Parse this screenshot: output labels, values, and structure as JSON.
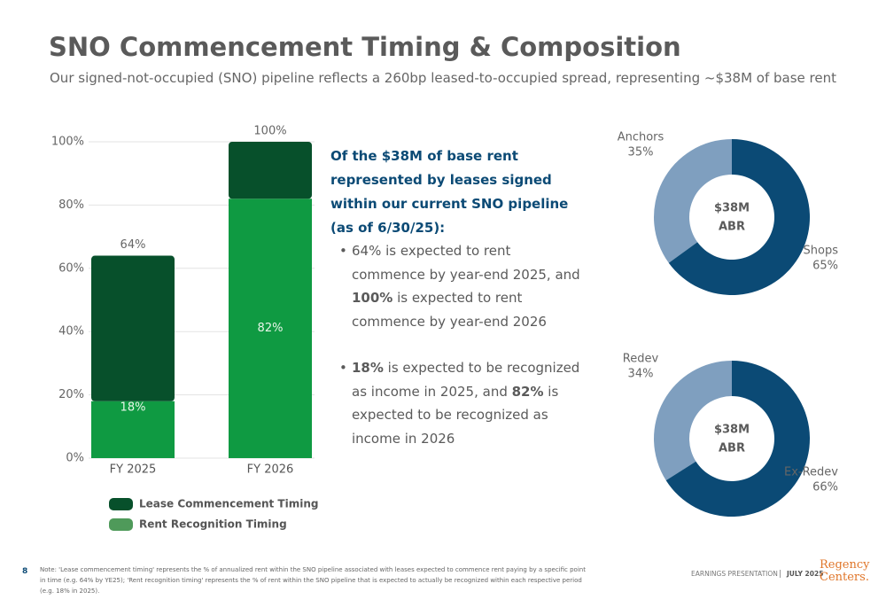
{
  "header": {
    "title": "SNO Commencement Timing & Composition",
    "subtitle": "Our signed-not-occupied (SNO) pipeline reflects a 260bp leased-to-occupied spread, representing ~$38M of base rent"
  },
  "chart_data": [
    {
      "type": "stacked_bar",
      "categories": [
        "FY 2025",
        "FY 2026"
      ],
      "series": [
        {
          "name": "Rent Recognition Timing",
          "color": "#0f9a42",
          "values": [
            18,
            82
          ],
          "value_labels": [
            "18%",
            "82%"
          ]
        },
        {
          "name": "Lease Commencement Timing",
          "color": "#07502b",
          "values": [
            46,
            18
          ]
        }
      ],
      "totals": [
        64,
        100
      ],
      "total_labels": [
        "64%",
        "100%"
      ],
      "legend_colors": [
        "#07502b",
        "#4f9a5a"
      ],
      "legend_order": [
        1,
        0
      ],
      "ylim": [
        0,
        100
      ],
      "yticks": [
        {
          "value": 0,
          "label": "0%"
        },
        {
          "value": 20,
          "label": "20%"
        },
        {
          "value": 40,
          "label": "40%"
        },
        {
          "value": 60,
          "label": "60%"
        },
        {
          "value": 80,
          "label": "80%"
        },
        {
          "value": 100,
          "label": "100%"
        }
      ],
      "grid": true
    },
    {
      "type": "donut",
      "categories": [
        "Anchors",
        "Shops"
      ],
      "values": [
        35,
        65
      ],
      "value_labels": [
        "35%",
        "65%"
      ],
      "colors": [
        "#7f9fbf",
        "#0b4a75"
      ],
      "center_label": [
        "$38M",
        "ABR"
      ]
    },
    {
      "type": "donut",
      "categories": [
        "Redev",
        "Ex-Redev"
      ],
      "values": [
        34,
        66
      ],
      "value_labels": [
        "34%",
        "66%"
      ],
      "colors": [
        "#7f9fbf",
        "#0b4a75"
      ],
      "center_label": [
        "$38M",
        "ABR"
      ]
    }
  ],
  "callout": {
    "heading": "Of the $38M of base rent represented by leases signed within our current SNO pipeline (as of 6/30/25):",
    "bullets": [
      [
        {
          "text": "64% is expected to rent commence by year-end 2025, and ",
          "bold": false
        },
        {
          "text": "100%",
          "bold": true
        },
        {
          "text": " is expected to rent commence by year-end 2026",
          "bold": false
        }
      ],
      [
        {
          "text": "18%",
          "bold": true
        },
        {
          "text": " is expected to be recognized as income in 2025, and ",
          "bold": false
        },
        {
          "text": "82%",
          "bold": true
        },
        {
          "text": " is expected to be recognized as income in 2026",
          "bold": false
        }
      ]
    ]
  },
  "footer": {
    "page": "8",
    "note": "Note: 'Lease commencement timing' represents the % of annualized rent within the SNO pipeline associated with leases expected to commence rent paying by a specific point in time (e.g. 64% by YE25); 'Rent recognition timing' represents the % of rent within the SNO pipeline that is expected to actually be recognized within each respective period (e.g. 18% in 2025).",
    "presentation": "EARNINGS PRESENTATION",
    "date": "JULY 2025",
    "logo": [
      "Regency",
      "Centers."
    ]
  }
}
